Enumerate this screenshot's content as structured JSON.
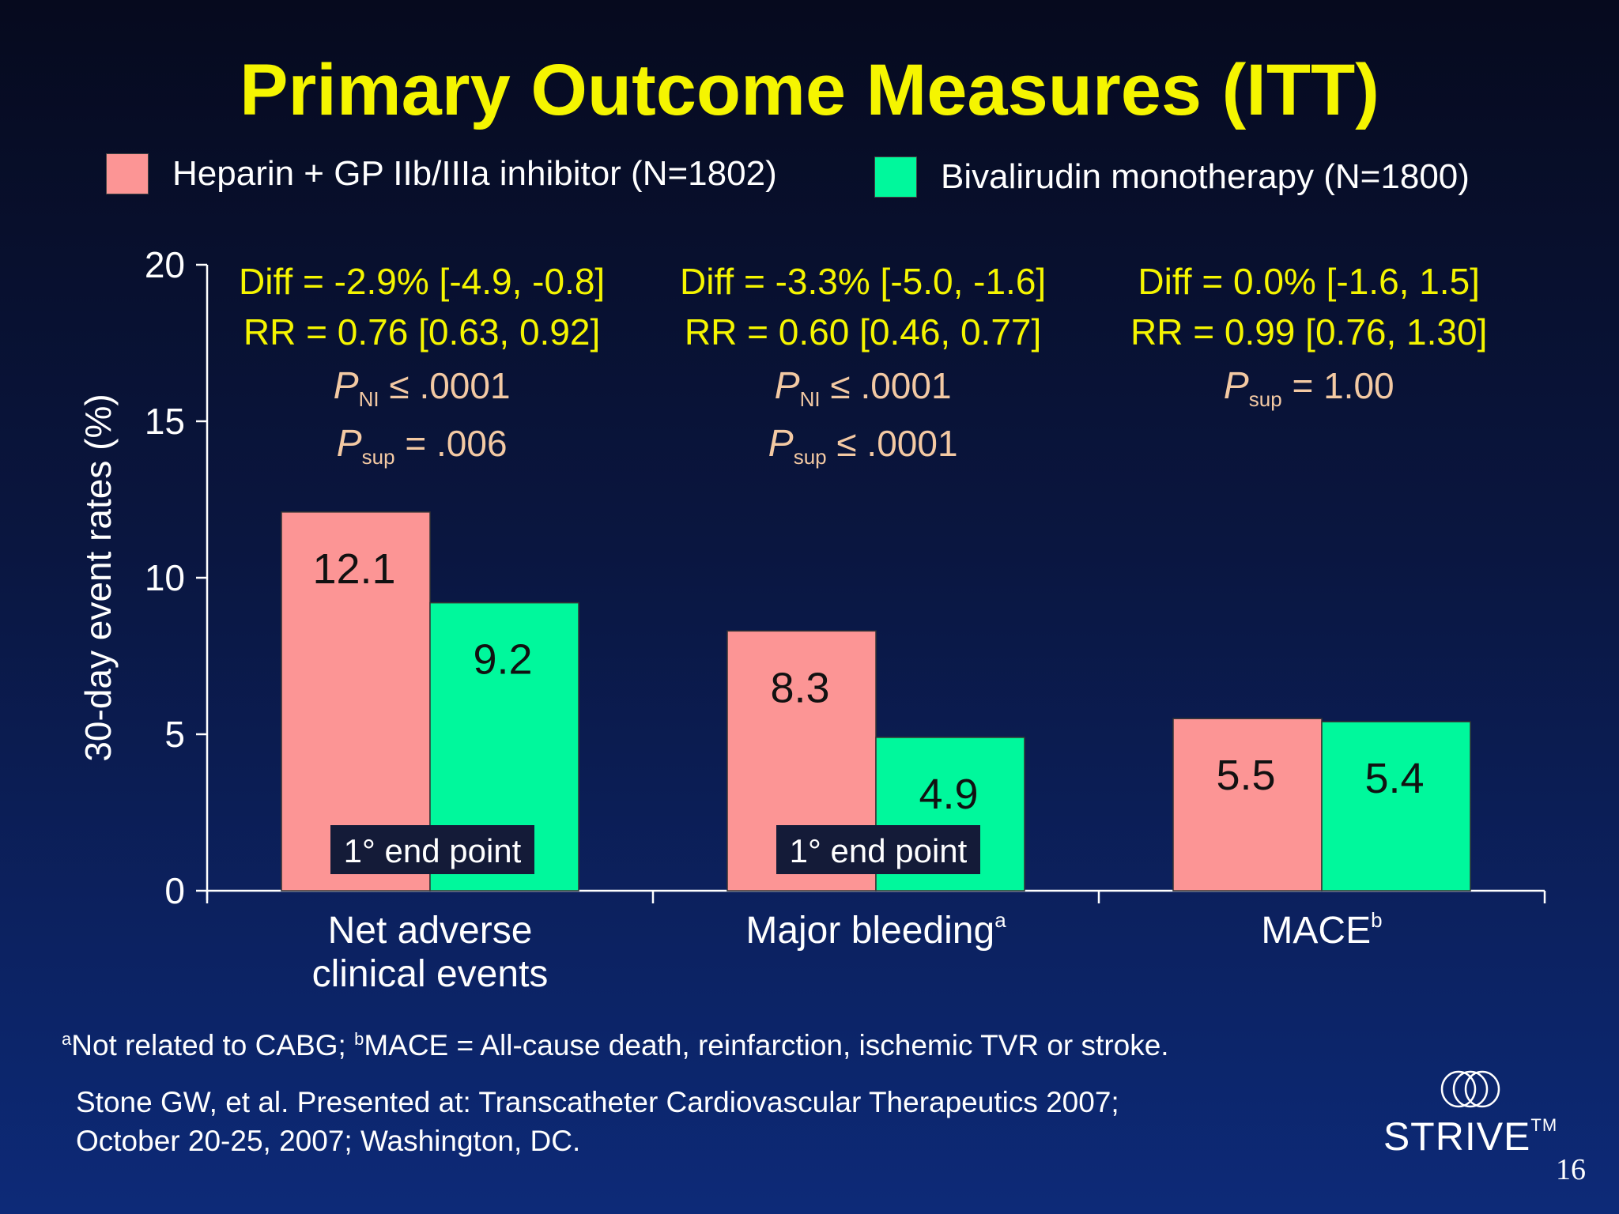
{
  "title": "Primary Outcome Measures (ITT)",
  "legend": [
    {
      "label": "Heparin + GP IIb/IIIa inhibitor (N=1802)",
      "color": "#fc9595"
    },
    {
      "label": "Bivalirudin monotherapy (N=1800)",
      "color": "#00f89c"
    }
  ],
  "stats": [
    {
      "diff": "Diff = -2.9% [-4.9, -0.8]",
      "rr": "RR = 0.76 [0.63, 0.92]",
      "p": [
        {
          "sub": "NI",
          "rest": " ≤ .0001"
        },
        {
          "sub": "sup",
          "rest": " = .006"
        }
      ]
    },
    {
      "diff": "Diff = -3.3% [-5.0, -1.6]",
      "rr": "RR = 0.60 [0.46, 0.77]",
      "p": [
        {
          "sub": "NI",
          "rest": " ≤ .0001"
        },
        {
          "sub": "sup",
          "rest": " ≤ .0001"
        }
      ]
    },
    {
      "diff": "Diff = 0.0% [-1.6, 1.5]",
      "rr": "RR = 0.99 [0.76, 1.30]",
      "p": [
        {
          "sub": "sup",
          "rest": " = 1.00"
        }
      ]
    }
  ],
  "p_letter": "P",
  "chart_data": {
    "type": "bar",
    "ylabel": "30-day event rates (%)",
    "ylim": [
      0,
      20
    ],
    "yticks": [
      0,
      5,
      10,
      15,
      20
    ],
    "categories": [
      {
        "lines": [
          "Net adverse",
          "clinical events"
        ],
        "sup": ""
      },
      {
        "lines": [
          "Major bleeding"
        ],
        "sup": "a"
      },
      {
        "lines": [
          "MACE"
        ],
        "sup": "b"
      }
    ],
    "series": [
      {
        "name": "Heparin + GP IIb/IIIa inhibitor (N=1802)",
        "color": "#fc9595",
        "values": [
          12.1,
          8.3,
          5.5
        ],
        "labels": [
          "12.1",
          "8.3",
          "5.5"
        ]
      },
      {
        "name": "Bivalirudin monotherapy (N=1800)",
        "color": "#00f89c",
        "values": [
          9.2,
          4.9,
          5.4
        ],
        "labels": [
          "9.2",
          "4.9",
          "5.4"
        ]
      }
    ],
    "annotations": [
      {
        "category": 0,
        "text": "1° end point"
      },
      {
        "category": 1,
        "text": "1° end point"
      }
    ]
  },
  "footnote": {
    "a_mark": "a",
    "a_text": "Not related to CABG; ",
    "b_mark": "b",
    "b_text": "MACE = All-cause death, reinfarction, ischemic TVR or stroke."
  },
  "citation": {
    "line1": "Stone GW, et al. Presented at: Transcatheter Cardiovascular Therapeutics 2007;",
    "line2": "October 20-25, 2007; Washington, DC."
  },
  "logo": {
    "text": "STRIVE",
    "tm": "TM"
  },
  "page_number": "16"
}
